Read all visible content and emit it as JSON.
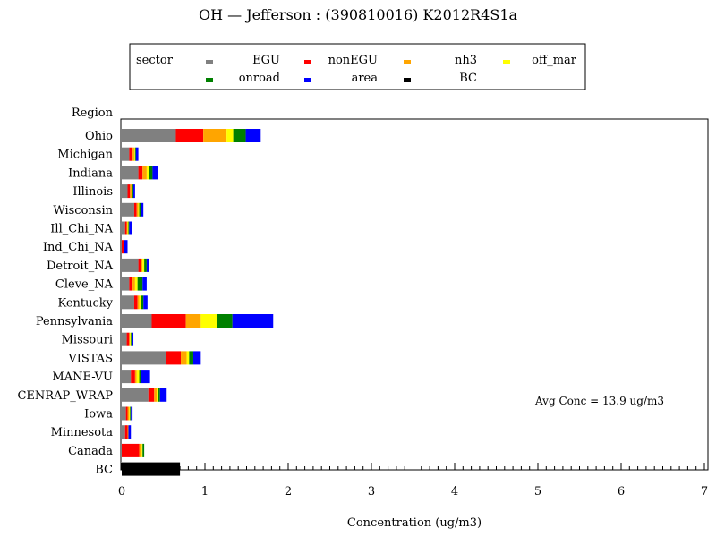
{
  "chart_data": {
    "type": "bar",
    "orientation": "horizontal",
    "stacked": true,
    "title": "OH  —  Jefferson  :  (390810016)  K2012R4S1a",
    "xlabel": "Concentration  (ug/m3)",
    "ylabel": "Region",
    "xlim": [
      0,
      7
    ],
    "xticks": [
      0,
      1,
      2,
      3,
      4,
      5,
      6,
      7
    ],
    "annotation": "Avg Conc  =  13.9 ug/m3",
    "legend": {
      "title": "sector",
      "placement": "top",
      "entries": [
        "EGU",
        "nonEGU",
        "nh3",
        "off_mar",
        "onroad",
        "area",
        "BC"
      ]
    },
    "colors": {
      "EGU": "#808080",
      "nonEGU": "#ff0000",
      "nh3": "#ffa500",
      "off_mar": "#ffff00",
      "onroad": "#008000",
      "area": "#0000ff",
      "BC": "#000000"
    },
    "categories": [
      "Ohio",
      "Michigan",
      "Indiana",
      "Illinois",
      "Wisconsin",
      "Ill_Chi_NA",
      "Ind_Chi_NA",
      "Detroit_NA",
      "Cleve_NA",
      "Kentucky",
      "Pennsylvania",
      "Missouri",
      "VISTAS",
      "MANE-VU",
      "CENRAP_WRAP",
      "Iowa",
      "Minnesota",
      "Canada",
      "BC"
    ],
    "series": [
      {
        "name": "EGU",
        "values": [
          0.65,
          0.09,
          0.2,
          0.07,
          0.15,
          0.04,
          0.0,
          0.2,
          0.09,
          0.15,
          0.36,
          0.06,
          0.53,
          0.11,
          0.32,
          0.05,
          0.04,
          0.0,
          0.0
        ]
      },
      {
        "name": "nonEGU",
        "values": [
          0.33,
          0.04,
          0.05,
          0.03,
          0.03,
          0.02,
          0.03,
          0.03,
          0.04,
          0.04,
          0.41,
          0.03,
          0.18,
          0.05,
          0.07,
          0.02,
          0.03,
          0.21,
          0.0
        ]
      },
      {
        "name": "nh3",
        "values": [
          0.28,
          0.02,
          0.05,
          0.02,
          0.02,
          0.01,
          0.0,
          0.02,
          0.03,
          0.02,
          0.18,
          0.01,
          0.07,
          0.02,
          0.03,
          0.02,
          0.01,
          0.03,
          0.0
        ]
      },
      {
        "name": "off_mar",
        "values": [
          0.08,
          0.01,
          0.03,
          0.01,
          0.01,
          0.01,
          0.0,
          0.02,
          0.03,
          0.02,
          0.19,
          0.01,
          0.03,
          0.03,
          0.02,
          0.01,
          0.0,
          0.01,
          0.0
        ]
      },
      {
        "name": "onroad",
        "values": [
          0.15,
          0.01,
          0.04,
          0.01,
          0.02,
          0.01,
          0.0,
          0.03,
          0.06,
          0.03,
          0.19,
          0.01,
          0.05,
          0.02,
          0.02,
          0.01,
          0.0,
          0.02,
          0.0
        ]
      },
      {
        "name": "area",
        "values": [
          0.18,
          0.03,
          0.07,
          0.02,
          0.03,
          0.03,
          0.04,
          0.03,
          0.05,
          0.05,
          0.49,
          0.02,
          0.09,
          0.11,
          0.08,
          0.02,
          0.03,
          0.0,
          0.0
        ]
      },
      {
        "name": "BC",
        "values": [
          0.0,
          0.0,
          0.0,
          0.0,
          0.0,
          0.0,
          0.0,
          0.0,
          0.0,
          0.0,
          0.0,
          0.0,
          0.0,
          0.0,
          0.0,
          0.0,
          0.0,
          0.0,
          0.7
        ]
      }
    ]
  }
}
